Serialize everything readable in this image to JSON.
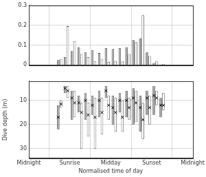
{
  "chart_data": [
    {
      "type": "bar",
      "x": [
        0.021,
        0.063,
        0.104,
        0.146,
        0.188,
        0.229,
        0.271,
        0.313,
        0.354,
        0.396,
        0.438,
        0.479,
        0.521,
        0.563,
        0.604,
        0.646,
        0.688,
        0.729,
        0.771,
        0.813,
        0.854,
        0.896,
        0.938,
        0.979
      ],
      "series": [
        {
          "color": "#a6a6a6",
          "values": [
            0.002,
            0,
            0,
            0,
            0.025,
            0.04,
            0.07,
            0.09,
            0.065,
            0.075,
            0.06,
            0.085,
            0.08,
            0.085,
            0.09,
            0.125,
            0.135,
            0.065,
            0.01,
            0.002,
            0,
            0,
            0,
            0
          ]
        },
        {
          "color": "#ffffff",
          "values": [
            0,
            0,
            0,
            0.002,
            0.03,
            0.195,
            0.12,
            0.055,
            0.04,
            0.02,
            0.03,
            0.015,
            0.02,
            0.02,
            0.055,
            0.115,
            0.25,
            0.045,
            0.02,
            0.005,
            0,
            0,
            0,
            0
          ]
        }
      ],
      "xlim": [
        0,
        1
      ],
      "xticks": [
        {
          "value": 0,
          "label": "Midnight"
        },
        {
          "value": 0.25,
          "label": "Sunrise"
        },
        {
          "value": 0.5,
          "label": "Midday"
        },
        {
          "value": 0.75,
          "label": "Sunset"
        },
        {
          "value": 1,
          "label": "Midnight"
        }
      ],
      "ylim": [
        0,
        0.3
      ],
      "yticks": [
        0,
        0.1,
        0.2,
        0.3
      ],
      "grid": true,
      "tick_labels": "y"
    },
    {
      "type": "range",
      "x_label": "Normalised time of day",
      "y_label": "Dive depth (m)",
      "x": [
        0.021,
        0.063,
        0.104,
        0.146,
        0.188,
        0.229,
        0.271,
        0.313,
        0.354,
        0.396,
        0.438,
        0.479,
        0.521,
        0.563,
        0.604,
        0.646,
        0.688,
        0.729,
        0.771,
        0.813,
        0.854,
        0.896,
        0.938,
        0.979
      ],
      "series": [
        {
          "color": "#a6a6a6",
          "marker": "x",
          "values": [
            null,
            null,
            null,
            null,
            17,
            5,
            9,
            11,
            10,
            12,
            10,
            6,
            13,
            10,
            10,
            9,
            13,
            9,
            8,
            12,
            null,
            null,
            null,
            null
          ],
          "low": [
            null,
            null,
            null,
            null,
            12,
            4,
            6,
            8,
            7,
            8,
            6,
            4,
            8,
            7,
            6,
            5,
            8,
            6,
            4,
            9,
            null,
            null,
            null,
            null
          ],
          "high": [
            null,
            null,
            null,
            null,
            22,
            7,
            18,
            15,
            18,
            16,
            17,
            9,
            20,
            15,
            17,
            20,
            23,
            16,
            16,
            17,
            null,
            null,
            null,
            null
          ]
        },
        {
          "color": "#ffffff",
          "marker": "x",
          "values": [
            null,
            null,
            null,
            null,
            11.5,
            6,
            11,
            15,
            16,
            17,
            15,
            12,
            15,
            17,
            13,
            11,
            18,
            13,
            9,
            12,
            null,
            null,
            null,
            null
          ],
          "low": [
            null,
            null,
            null,
            null,
            10,
            4,
            6,
            11,
            11,
            9,
            9,
            8,
            9,
            10,
            9,
            6,
            11,
            8,
            6,
            7,
            null,
            null,
            null,
            null
          ],
          "high": [
            null,
            null,
            null,
            null,
            13,
            9,
            17,
            30,
            25,
            30,
            24,
            18,
            23,
            23,
            18,
            19,
            26,
            20,
            12,
            14,
            null,
            null,
            null,
            null
          ]
        }
      ],
      "xlim": [
        0,
        1
      ],
      "xticks": [
        {
          "value": 0,
          "label": "Midnight"
        },
        {
          "value": 0.25,
          "label": "Sunrise"
        },
        {
          "value": 0.5,
          "label": "Midday"
        },
        {
          "value": 0.75,
          "label": "Sunset"
        },
        {
          "value": 1,
          "label": "Midnight"
        }
      ],
      "ylim": [
        34,
        2
      ],
      "yticks": [
        10,
        20,
        30
      ],
      "grid": true
    }
  ]
}
